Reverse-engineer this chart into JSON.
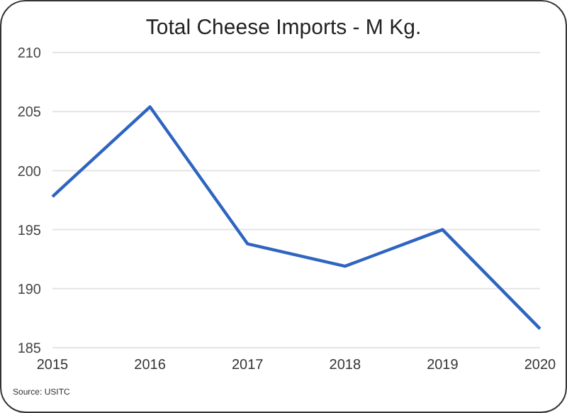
{
  "chart_data": {
    "type": "line",
    "title": "Total Cheese Imports - M Kg.",
    "categories": [
      "2015",
      "2016",
      "2017",
      "2018",
      "2019",
      "2020"
    ],
    "series": [
      {
        "color": "#2e65c0",
        "values": [
          197.8,
          205.4,
          193.8,
          191.9,
          195.0,
          186.6
        ]
      }
    ],
    "ylim": [
      185,
      210
    ],
    "yticks": [
      185,
      190,
      195,
      200,
      205,
      210
    ],
    "grid": "y",
    "marker": "none",
    "line_style": "solid",
    "annotations": [
      "Source: USITC"
    ]
  }
}
